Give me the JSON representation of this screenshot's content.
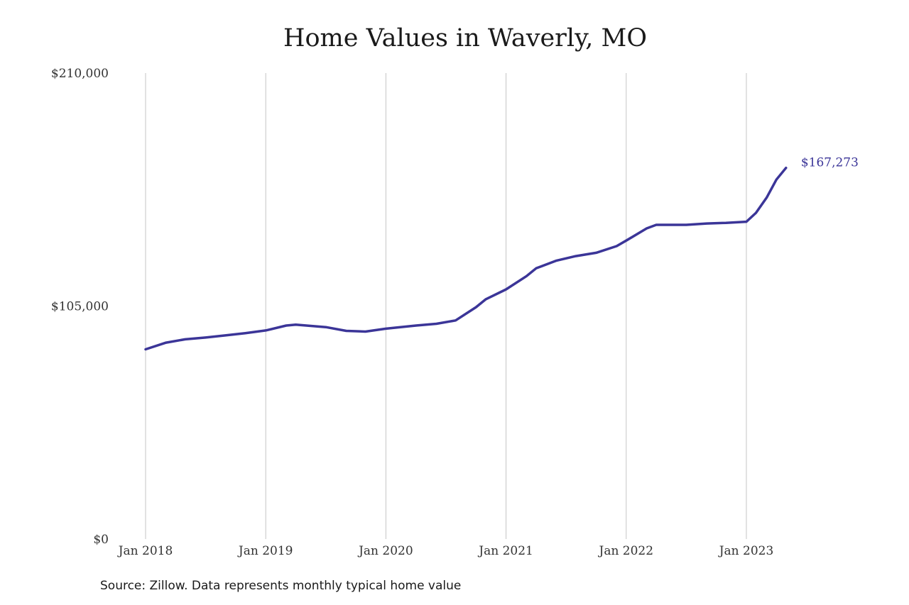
{
  "chart_data": {
    "type": "line",
    "title": "Home Values in Waverly, MO",
    "xlabel": "",
    "ylabel": "",
    "ylim": [
      0,
      210000
    ],
    "y_ticks": [
      "$0",
      "$105,000",
      "$210,000"
    ],
    "y_tick_values": [
      0,
      105000,
      210000
    ],
    "x_ticks": [
      "Jan 2018",
      "Jan 2019",
      "Jan 2020",
      "Jan 2021",
      "Jan 2022",
      "Jan 2023"
    ],
    "x_tick_values": [
      2018,
      2019,
      2020,
      2021,
      2022,
      2023
    ],
    "xlim": [
      2018,
      2023.33
    ],
    "grid": "vertical",
    "line_color": "#3b3598",
    "series": [
      {
        "values": [
          [
            2018.0,
            85500
          ],
          [
            2018.17,
            88500
          ],
          [
            2018.33,
            90000
          ],
          [
            2018.5,
            90800
          ],
          [
            2018.67,
            91800
          ],
          [
            2018.83,
            92800
          ],
          [
            2019.0,
            94000
          ],
          [
            2019.17,
            96200
          ],
          [
            2019.25,
            96600
          ],
          [
            2019.5,
            95500
          ],
          [
            2019.67,
            93800
          ],
          [
            2019.83,
            93500
          ],
          [
            2020.0,
            94800
          ],
          [
            2020.25,
            96200
          ],
          [
            2020.42,
            97000
          ],
          [
            2020.58,
            98500
          ],
          [
            2020.75,
            104500
          ],
          [
            2020.83,
            108000
          ],
          [
            2021.0,
            112500
          ],
          [
            2021.17,
            118500
          ],
          [
            2021.25,
            122000
          ],
          [
            2021.42,
            125500
          ],
          [
            2021.58,
            127500
          ],
          [
            2021.75,
            129000
          ],
          [
            2021.92,
            132000
          ],
          [
            2022.0,
            134500
          ],
          [
            2022.17,
            140000
          ],
          [
            2022.25,
            141600
          ],
          [
            2022.5,
            141600
          ],
          [
            2022.67,
            142200
          ],
          [
            2022.83,
            142500
          ],
          [
            2023.0,
            143000
          ],
          [
            2023.08,
            147000
          ],
          [
            2023.17,
            154000
          ],
          [
            2023.25,
            162000
          ],
          [
            2023.33,
            167273
          ]
        ]
      }
    ],
    "end_label": "$167,273"
  },
  "source_note": "Source: Zillow. Data represents monthly typical home value"
}
